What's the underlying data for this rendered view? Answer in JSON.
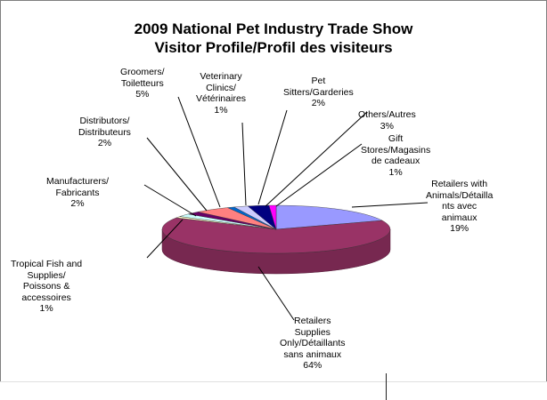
{
  "chart_data": {
    "type": "pie",
    "title_line1": "2009 National Pet Industry Trade Show",
    "title_line2": "Visitor Profile/Profil des visiteurs",
    "legend": "none",
    "slices": [
      {
        "label_lines": [
          "Retailers with",
          "Animals/Détailla",
          "nts avec",
          "animaux"
        ],
        "value_text": "19%",
        "value": 19,
        "color": "#9999ff"
      },
      {
        "label_lines": [
          "Retailers",
          "Supplies",
          "Only/Détaillants",
          "sans animaux"
        ],
        "value_text": "64%",
        "value": 64,
        "color": "#993366"
      },
      {
        "label_lines": [
          "Tropical Fish and",
          "Supplies/",
          "Poissons &",
          "accessoires"
        ],
        "value_text": "1%",
        "value": 1,
        "color": "#ffffcc"
      },
      {
        "label_lines": [
          "Manufacturers/",
          "Fabricants"
        ],
        "value_text": "2%",
        "value": 2,
        "color": "#ccffff"
      },
      {
        "label_lines": [
          "Distributors/",
          "Distributeurs"
        ],
        "value_text": "2%",
        "value": 2,
        "color": "#660066"
      },
      {
        "label_lines": [
          "Groomers/",
          "Toiletteurs"
        ],
        "value_text": "5%",
        "value": 5,
        "color": "#ff8080"
      },
      {
        "label_lines": [
          "Veterinary",
          "Clinics/",
          "Vétérinaires"
        ],
        "value_text": "1%",
        "value": 1,
        "color": "#0066cc"
      },
      {
        "label_lines": [
          "Pet",
          "Sitters/Garderies"
        ],
        "value_text": "2%",
        "value": 2,
        "color": "#ccccff"
      },
      {
        "label_lines": [
          "Others/Autres"
        ],
        "value_text": "3%",
        "value": 3,
        "color": "#000080"
      },
      {
        "label_lines": [
          "Gift",
          "Stores/Magasins",
          "de cadeaux"
        ],
        "value_text": "1%",
        "value": 1,
        "color": "#ff00ff"
      }
    ]
  }
}
